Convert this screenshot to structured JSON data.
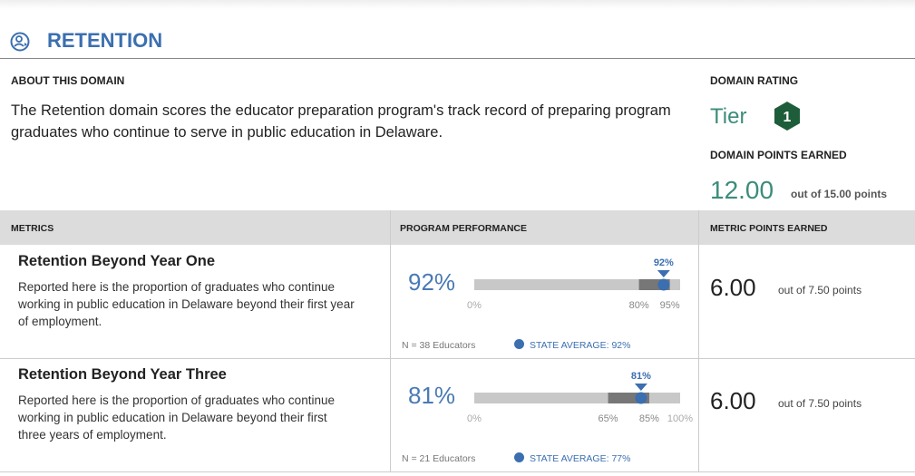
{
  "header": {
    "title": "RETENTION"
  },
  "about": {
    "heading": "ABOUT THIS DOMAIN",
    "text": "The Retention domain scores the educator preparation program's track record of preparing program graduates who continue to serve in public education in Delaware."
  },
  "rating": {
    "heading": "DOMAIN RATING",
    "tier_label": "Tier",
    "tier": "1",
    "points_heading": "DOMAIN POINTS EARNED",
    "points": "12.00",
    "points_total": "out of 15.00 points"
  },
  "table": {
    "columns": [
      "METRICS",
      "PROGRAM PERFORMANCE",
      "METRIC POINTS EARNED"
    ],
    "rows": [
      {
        "name": "Retention Beyond Year One",
        "description": "Reported here is the proportion of graduates who continue working in public education in Delaware beyond their first year of employment.",
        "performance": {
          "value": 92,
          "label": "92%"
        },
        "xlim": [
          0,
          100
        ],
        "range": [
          {
            "value": 80,
            "label": "80%"
          },
          {
            "value": 95,
            "label": "95%"
          }
        ],
        "scale_labels": [
          {
            "value": 0,
            "label": "0%"
          }
        ],
        "n": "N = 38 Educators",
        "state_average": "STATE AVERAGE: 92%",
        "points": "6.00",
        "points_total": "out of 7.50 points"
      },
      {
        "name": "Retention Beyond Year Three",
        "description": "Reported here is the proportion of graduates who continue working in public education in Delaware beyond their first three years of employment.",
        "performance": {
          "value": 81,
          "label": "81%"
        },
        "xlim": [
          0,
          100
        ],
        "range": [
          {
            "value": 65,
            "label": "65%"
          },
          {
            "value": 85,
            "label": "85%"
          }
        ],
        "scale_labels": [
          {
            "value": 0,
            "label": "0%"
          },
          {
            "value": 100,
            "label": "100%"
          }
        ],
        "n": "N = 21 Educators",
        "state_average": "STATE AVERAGE: 77%",
        "points": "6.00",
        "points_total": "out of 7.50 points"
      }
    ]
  }
}
